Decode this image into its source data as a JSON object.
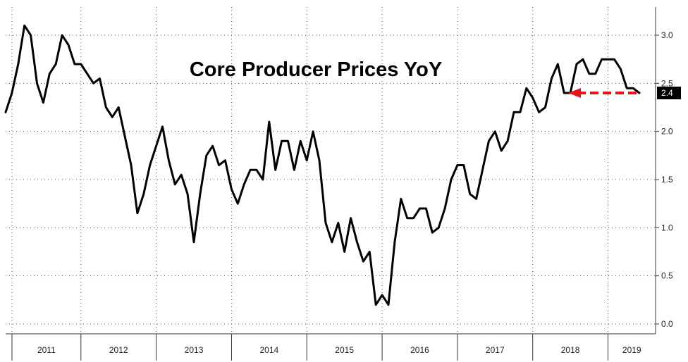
{
  "chart_data": {
    "type": "line",
    "title": "Core Producer Prices YoY",
    "xlabel": "",
    "ylabel": "",
    "ylim": [
      0,
      3.2
    ],
    "yticks": [
      "0.0",
      "0.5",
      "1.0",
      "1.5",
      "2.0",
      "2.5",
      "3.0"
    ],
    "year_labels": [
      "2011",
      "2012",
      "2013",
      "2014",
      "2015",
      "2016",
      "2017",
      "2018",
      "2019"
    ],
    "grid": true,
    "last_value_label": "2.4",
    "series_color": "#000000",
    "annotation_color": "#e8141a",
    "label_box_color": "#000000",
    "series": [
      {
        "values": [
          2.2,
          2.4,
          2.7,
          3.1,
          3.0,
          2.5,
          2.3,
          2.6,
          2.7,
          3.0,
          2.9,
          2.7,
          2.7,
          2.6,
          2.5,
          2.55,
          2.25,
          2.15,
          2.25,
          1.95,
          1.65,
          1.15,
          1.35,
          1.65,
          1.85,
          2.05,
          1.7,
          1.45,
          1.55,
          1.35,
          0.85,
          1.35,
          1.75,
          1.85,
          1.65,
          1.7,
          1.4,
          1.25,
          1.45,
          1.6,
          1.6,
          1.5,
          2.1,
          1.6,
          1.9,
          1.9,
          1.6,
          1.9,
          1.7,
          2.0,
          1.7,
          1.05,
          0.85,
          1.05,
          0.75,
          1.1,
          0.85,
          0.65,
          0.75,
          0.2,
          0.3,
          0.2,
          0.85,
          1.3,
          1.1,
          1.1,
          1.2,
          1.2,
          0.95,
          1.0,
          1.2,
          1.5,
          1.65,
          1.65,
          1.35,
          1.3,
          1.6,
          1.9,
          2.0,
          1.8,
          1.9,
          2.2,
          2.2,
          2.45,
          2.35,
          2.2,
          2.25,
          2.55,
          2.7,
          2.4,
          2.4,
          2.7,
          2.75,
          2.6,
          2.6,
          2.75,
          2.75,
          2.75,
          2.65,
          2.45,
          2.45,
          2.4
        ]
      }
    ]
  }
}
